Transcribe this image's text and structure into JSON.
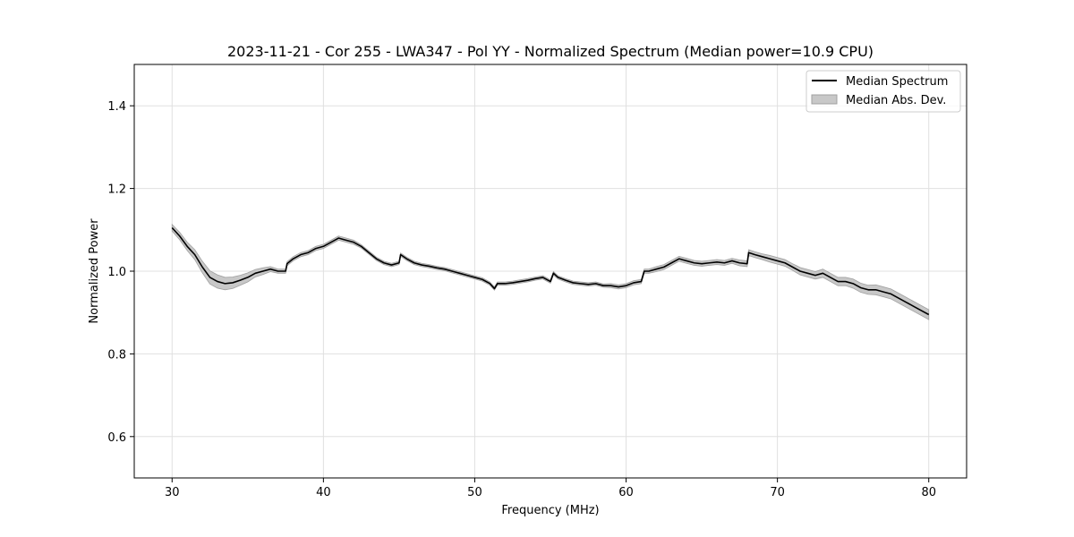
{
  "chart_data": {
    "type": "line",
    "title": "2023-11-21 - Cor 255 - LWA347 - Pol YY - Normalized Spectrum (Median power=10.9 CPU)",
    "xlabel": "Frequency (MHz)",
    "ylabel": "Normalized Power",
    "xlim": [
      27.5,
      82.5
    ],
    "ylim": [
      0.5,
      1.5
    ],
    "xticks": [
      30,
      40,
      50,
      60,
      70,
      80
    ],
    "yticks": [
      0.6,
      0.8,
      1.0,
      1.2,
      1.4
    ],
    "grid": true,
    "legend_position": "upper right",
    "legend": [
      "Median Spectrum",
      "Median Abs. Dev."
    ],
    "colors": {
      "line": "#000000",
      "band": "#c8c8c8",
      "band_edge": "#a0a0a0",
      "grid": "#e0e0e0"
    },
    "series": [
      {
        "name": "Median Spectrum",
        "x": [
          30.0,
          30.5,
          31.0,
          31.5,
          32.0,
          32.5,
          33.0,
          33.5,
          34.0,
          34.5,
          35.0,
          35.5,
          36.0,
          36.5,
          37.0,
          37.5,
          37.6,
          38.0,
          38.5,
          39.0,
          39.5,
          40.0,
          40.5,
          41.0,
          41.5,
          42.0,
          42.5,
          43.0,
          43.5,
          44.0,
          44.5,
          45.0,
          45.1,
          45.5,
          46.0,
          46.5,
          47.0,
          47.5,
          48.0,
          48.5,
          49.0,
          49.5,
          50.0,
          50.5,
          51.0,
          51.3,
          51.5,
          52.0,
          52.5,
          53.0,
          53.5,
          54.0,
          54.5,
          55.0,
          55.2,
          55.5,
          56.0,
          56.5,
          57.0,
          57.5,
          58.0,
          58.5,
          59.0,
          59.5,
          60.0,
          60.5,
          61.0,
          61.2,
          61.5,
          62.0,
          62.5,
          63.0,
          63.5,
          64.0,
          64.5,
          65.0,
          65.5,
          66.0,
          66.5,
          67.0,
          67.5,
          68.0,
          68.1,
          68.5,
          69.0,
          69.5,
          70.0,
          70.5,
          71.0,
          71.5,
          72.0,
          72.5,
          73.0,
          73.5,
          74.0,
          74.5,
          75.0,
          75.5,
          76.0,
          76.5,
          77.0,
          77.5,
          78.0,
          78.5,
          79.0,
          79.5,
          80.0
        ],
        "values": [
          1.105,
          1.085,
          1.06,
          1.04,
          1.01,
          0.985,
          0.975,
          0.97,
          0.972,
          0.978,
          0.985,
          0.995,
          1.0,
          1.005,
          1.0,
          1.0,
          1.018,
          1.03,
          1.04,
          1.045,
          1.055,
          1.06,
          1.07,
          1.08,
          1.075,
          1.07,
          1.06,
          1.045,
          1.03,
          1.02,
          1.015,
          1.02,
          1.04,
          1.03,
          1.02,
          1.015,
          1.012,
          1.008,
          1.005,
          1.0,
          0.995,
          0.99,
          0.985,
          0.98,
          0.97,
          0.958,
          0.97,
          0.97,
          0.972,
          0.975,
          0.978,
          0.982,
          0.985,
          0.975,
          0.995,
          0.985,
          0.978,
          0.972,
          0.97,
          0.968,
          0.97,
          0.965,
          0.965,
          0.962,
          0.965,
          0.972,
          0.975,
          1.0,
          1.0,
          1.005,
          1.01,
          1.02,
          1.03,
          1.025,
          1.02,
          1.018,
          1.02,
          1.022,
          1.02,
          1.025,
          1.02,
          1.018,
          1.045,
          1.04,
          1.035,
          1.03,
          1.025,
          1.02,
          1.01,
          1.0,
          0.995,
          0.99,
          0.995,
          0.985,
          0.975,
          0.975,
          0.97,
          0.96,
          0.955,
          0.955,
          0.95,
          0.945,
          0.935,
          0.925,
          0.915,
          0.905,
          0.895
        ]
      },
      {
        "name": "Median Abs. Dev.",
        "x": [
          30.0,
          30.5,
          31.0,
          31.5,
          32.0,
          32.5,
          33.0,
          33.5,
          34.0,
          34.5,
          35.0,
          35.5,
          36.0,
          36.5,
          37.0,
          37.5,
          37.6,
          38.0,
          38.5,
          39.0,
          39.5,
          40.0,
          40.5,
          41.0,
          41.5,
          42.0,
          42.5,
          43.0,
          43.5,
          44.0,
          44.5,
          45.0,
          45.1,
          45.5,
          46.0,
          46.5,
          47.0,
          47.5,
          48.0,
          48.5,
          49.0,
          49.5,
          50.0,
          50.5,
          51.0,
          51.3,
          51.5,
          52.0,
          52.5,
          53.0,
          53.5,
          54.0,
          54.5,
          55.0,
          55.2,
          55.5,
          56.0,
          56.5,
          57.0,
          57.5,
          58.0,
          58.5,
          59.0,
          59.5,
          60.0,
          60.5,
          61.0,
          61.2,
          61.5,
          62.0,
          62.5,
          63.0,
          63.5,
          64.0,
          64.5,
          65.0,
          65.5,
          66.0,
          66.5,
          67.0,
          67.5,
          68.0,
          68.1,
          68.5,
          69.0,
          69.5,
          70.0,
          70.5,
          71.0,
          71.5,
          72.0,
          72.5,
          73.0,
          73.5,
          74.0,
          74.5,
          75.0,
          75.5,
          76.0,
          76.5,
          77.0,
          77.5,
          78.0,
          78.5,
          79.0,
          79.5,
          80.0
        ],
        "values": [
          0.008,
          0.009,
          0.01,
          0.012,
          0.014,
          0.016,
          0.016,
          0.015,
          0.014,
          0.012,
          0.011,
          0.009,
          0.008,
          0.006,
          0.005,
          0.005,
          0.005,
          0.005,
          0.005,
          0.005,
          0.005,
          0.005,
          0.005,
          0.005,
          0.005,
          0.005,
          0.004,
          0.004,
          0.004,
          0.004,
          0.004,
          0.004,
          0.004,
          0.004,
          0.004,
          0.004,
          0.004,
          0.004,
          0.004,
          0.004,
          0.004,
          0.004,
          0.004,
          0.004,
          0.004,
          0.004,
          0.004,
          0.004,
          0.004,
          0.004,
          0.004,
          0.004,
          0.004,
          0.004,
          0.004,
          0.004,
          0.004,
          0.004,
          0.004,
          0.004,
          0.004,
          0.004,
          0.005,
          0.005,
          0.005,
          0.005,
          0.005,
          0.005,
          0.005,
          0.006,
          0.006,
          0.006,
          0.006,
          0.006,
          0.006,
          0.006,
          0.006,
          0.006,
          0.006,
          0.006,
          0.007,
          0.007,
          0.007,
          0.007,
          0.007,
          0.008,
          0.008,
          0.008,
          0.008,
          0.009,
          0.009,
          0.009,
          0.01,
          0.01,
          0.01,
          0.01,
          0.011,
          0.011,
          0.011,
          0.012,
          0.012,
          0.012,
          0.012,
          0.012,
          0.012,
          0.012,
          0.012
        ]
      }
    ]
  }
}
